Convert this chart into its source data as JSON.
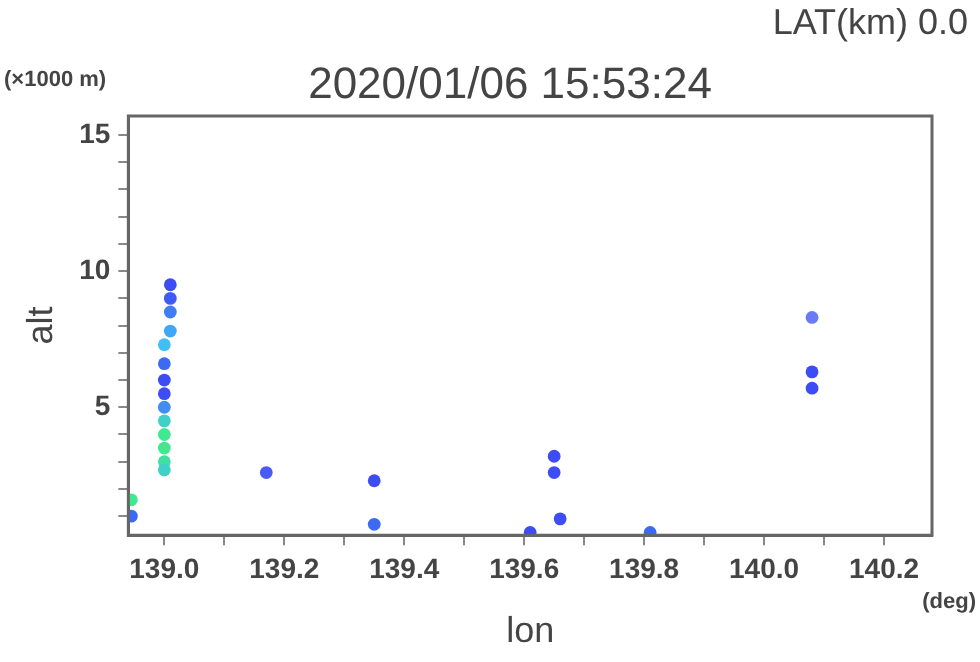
{
  "chart_data": {
    "type": "scatter",
    "title": "2020/01/06 15:53:24",
    "subtitle": "LAT(km) 0.0",
    "xlabel": "lon",
    "ylabel": "alt",
    "annotations": [
      "(×1000 m)",
      "(deg)"
    ],
    "xlim": [
      138.94,
      140.28
    ],
    "xticks": [
      {
        "value": 139,
        "label": "139.0"
      },
      {
        "value": 139.1,
        "label": null
      },
      {
        "value": 139.2,
        "label": "139.2"
      },
      {
        "value": 139.3,
        "label": null
      },
      {
        "value": 139.4,
        "label": "139.4"
      },
      {
        "value": 139.5,
        "label": null
      },
      {
        "value": 139.6,
        "label": "139.6"
      },
      {
        "value": 139.7,
        "label": null
      },
      {
        "value": 139.8,
        "label": "139.8"
      },
      {
        "value": 139.9,
        "label": null
      },
      {
        "value": 140,
        "label": "140.0"
      },
      {
        "value": 140.1,
        "label": null
      },
      {
        "value": 140.2,
        "label": "140.2"
      }
    ],
    "ylim": [
      0.3,
      15.7
    ],
    "yticks": [
      {
        "value": 1,
        "label": null
      },
      {
        "value": 2,
        "label": null
      },
      {
        "value": 3,
        "label": null
      },
      {
        "value": 4,
        "label": null
      },
      5,
      {
        "value": 6,
        "label": null
      },
      {
        "value": 7,
        "label": null
      },
      {
        "value": 8,
        "label": null
      },
      {
        "value": 9,
        "label": null
      },
      10,
      {
        "value": 11,
        "label": null
      },
      {
        "value": 12,
        "label": null
      },
      {
        "value": 13,
        "label": null
      },
      {
        "value": 14,
        "label": null
      },
      15
    ],
    "grid": false,
    "legend": false,
    "marker": "circle",
    "series": [
      {
        "x": [
          139.01,
          139.01,
          139.01,
          139.01,
          139.0,
          139.0,
          139.0,
          139.0,
          139.0,
          139.0,
          139.0,
          139.0,
          139.0,
          139.0,
          138.945,
          138.945,
          139.17,
          139.35,
          139.35,
          139.65,
          139.65,
          139.66,
          139.61,
          139.81,
          140.08,
          140.08,
          140.08
        ],
        "values": [
          9.5,
          9.0,
          8.5,
          7.8,
          7.3,
          6.6,
          6.0,
          5.5,
          5.0,
          4.5,
          4.0,
          3.5,
          3.0,
          2.7,
          1.6,
          1.0,
          2.6,
          2.3,
          0.7,
          3.2,
          2.6,
          0.9,
          0.4,
          0.4,
          6.3,
          5.7,
          8.3
        ],
        "colors": [
          "#3d4cf5",
          "#3d5af5",
          "#3f7cf5",
          "#3fa8f5",
          "#3fc0f5",
          "#3d6af5",
          "#3d4cf5",
          "#3d4cf5",
          "#3f8ef0",
          "#3fd0c8",
          "#40e890",
          "#40e890",
          "#40e0a0",
          "#3fd0c8",
          "#40e890",
          "#3d6af5",
          "#4a5cf5",
          "#3d4cf5",
          "#3d6af5",
          "#3d4cf5",
          "#3d4cf5",
          "#3d4cf5",
          "#3d4cf5",
          "#3d6af5",
          "#3d4cf5",
          "#3d4cf5",
          "#6a7af5"
        ]
      }
    ]
  }
}
